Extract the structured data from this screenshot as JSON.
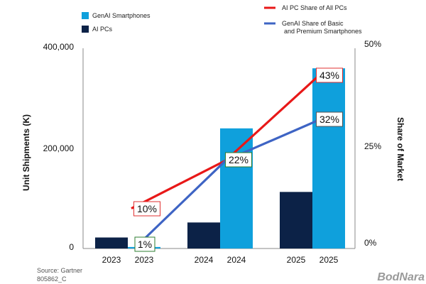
{
  "chart_data": {
    "type": "bar",
    "categories": [
      "2023",
      "2024",
      "2025"
    ],
    "bar_series": [
      {
        "name": "AI PCs",
        "color": "#0c2247",
        "values": [
          22000,
          52000,
          113000
        ]
      },
      {
        "name": "GenAI Smartphones",
        "color": "#0fa0dc",
        "values": [
          3000,
          240000,
          360000
        ]
      }
    ],
    "line_series": [
      {
        "name": "AI PC Share of All PCs",
        "color": "#e81818",
        "axis": "right",
        "values": [
          10,
          22,
          43
        ],
        "labels": [
          "10%",
          "22%",
          "43%"
        ]
      },
      {
        "name": "GenAI Share of Basic and Premium Smartphones",
        "name_lines": [
          "GenAI Share of Basic",
          "and Premium Smartphones"
        ],
        "color": "#3e64c4",
        "axis": "right",
        "values": [
          1,
          22,
          32
        ],
        "labels": [
          "1%",
          "22%",
          "32%"
        ]
      }
    ],
    "ylabel": "Unit Shipments (K)",
    "ylim": [
      0,
      400000
    ],
    "yticks": [
      "0",
      "200,000",
      "400,000"
    ],
    "y2label": "Share of Market",
    "y2lim": [
      0,
      50
    ],
    "y2ticks": [
      "0%",
      "25%",
      "50%"
    ],
    "x_tick_labels": [
      "2023",
      "2023",
      "2024",
      "2024",
      "2025",
      "2025"
    ],
    "legend_placement": "top"
  },
  "footer": {
    "source": "Source: Gartner",
    "code": "805862_C"
  },
  "brand": "BodNara"
}
